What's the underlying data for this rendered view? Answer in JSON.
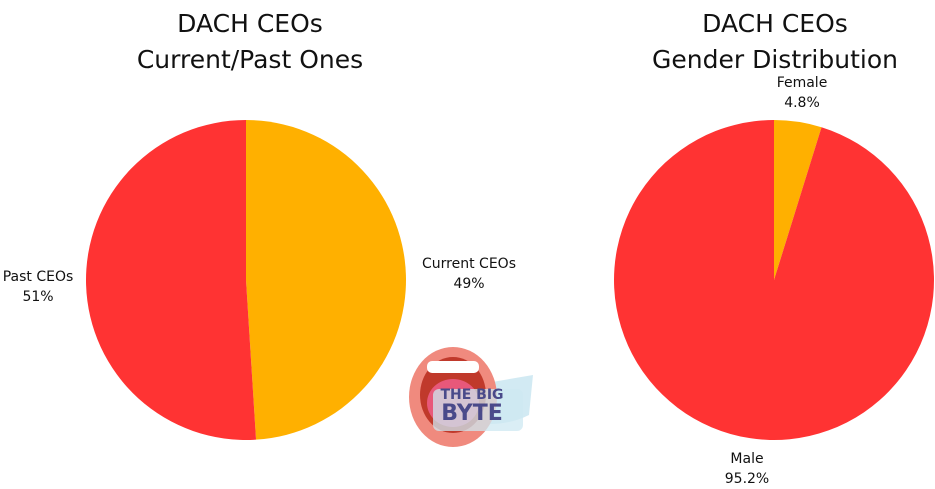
{
  "chart_data": [
    {
      "type": "pie",
      "title": "DACH CEOs",
      "subtitle": "Current/Past Ones",
      "slices": [
        {
          "name": "Current CEOs",
          "value": 49,
          "label": "49%",
          "color": "#ffb000"
        },
        {
          "name": "Past CEOs",
          "value": 51,
          "label": "51%",
          "color": "#ff3333"
        }
      ]
    },
    {
      "type": "pie",
      "title": "DACH CEOs",
      "subtitle": "Gender Distribution",
      "slices": [
        {
          "name": "Female",
          "value": 4.8,
          "label": "4.8%",
          "color": "#ffb000"
        },
        {
          "name": "Male",
          "value": 95.2,
          "label": "95.2%",
          "color": "#ff3333"
        }
      ]
    }
  ],
  "logo": {
    "line1": "THE BIG",
    "line2": "BYTE"
  }
}
